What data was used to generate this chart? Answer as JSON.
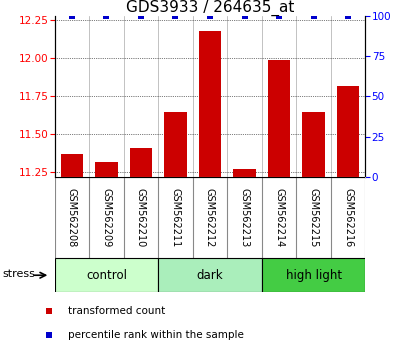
{
  "title": "GDS3933 / 264635_at",
  "samples": [
    "GSM562208",
    "GSM562209",
    "GSM562210",
    "GSM562211",
    "GSM562212",
    "GSM562213",
    "GSM562214",
    "GSM562215",
    "GSM562216"
  ],
  "transformed_counts": [
    11.37,
    11.32,
    11.41,
    11.65,
    12.18,
    11.27,
    11.99,
    11.65,
    11.82
  ],
  "percentile_ranks": [
    100,
    100,
    100,
    100,
    100,
    100,
    100,
    100,
    100
  ],
  "groups": [
    {
      "label": "control",
      "indices": [
        0,
        1,
        2
      ],
      "color": "#ccffcc"
    },
    {
      "label": "dark",
      "indices": [
        3,
        4,
        5
      ],
      "color": "#aaeebb"
    },
    {
      "label": "high light",
      "indices": [
        6,
        7,
        8
      ],
      "color": "#44cc44"
    }
  ],
  "ylim_left": [
    11.22,
    12.28
  ],
  "ylim_right": [
    0,
    100
  ],
  "yticks_left": [
    11.25,
    11.5,
    11.75,
    12.0,
    12.25
  ],
  "yticks_right": [
    0,
    25,
    50,
    75,
    100
  ],
  "bar_color": "#cc0000",
  "dot_color": "#0000cc",
  "bar_bottom": 11.22,
  "bar_width": 0.65,
  "stress_label": "stress",
  "legend_red_label": "transformed count",
  "legend_blue_label": "percentile rank within the sample",
  "title_fontsize": 11,
  "tick_fontsize": 7.5,
  "sample_fontsize": 7,
  "group_label_fontsize": 8.5,
  "legend_fontsize": 7.5,
  "sample_box_color": "#cccccc",
  "sample_box_edge": "#888888"
}
